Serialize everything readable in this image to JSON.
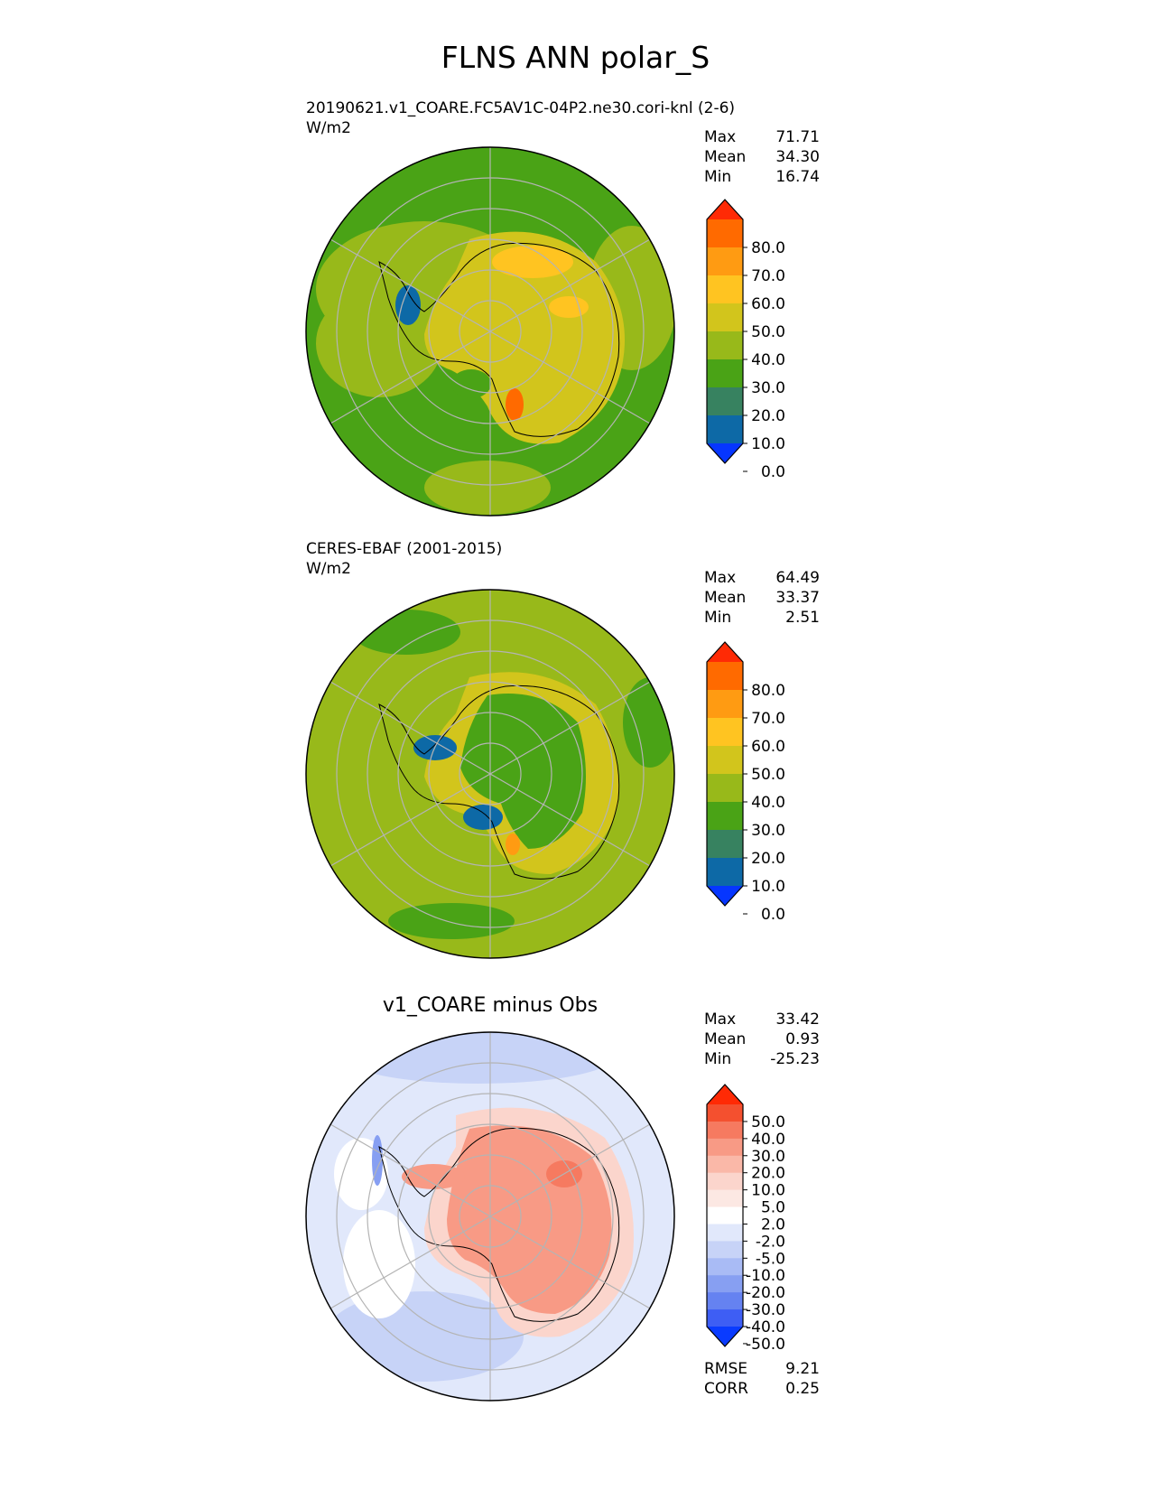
{
  "figure": {
    "title": "FLNS ANN polar_S"
  },
  "panels": [
    {
      "id": "test",
      "title_line1": "20190621.v1_COARE.FC5AV1C-04P2.ne30.cori-knl (2-6)",
      "title_line2": "W/m2",
      "stats": [
        {
          "label": "Max",
          "value": "71.71"
        },
        {
          "label": "Mean",
          "value": "34.30"
        },
        {
          "label": "Min",
          "value": "16.74"
        }
      ]
    },
    {
      "id": "ref",
      "title_line1": "CERES-EBAF (2001-2015)",
      "title_line2": "W/m2",
      "stats": [
        {
          "label": "Max",
          "value": "64.49"
        },
        {
          "label": "Mean",
          "value": "33.37"
        },
        {
          "label": "Min",
          "value": "2.51"
        }
      ]
    },
    {
      "id": "diff",
      "title": "v1_COARE minus Obs",
      "stats": [
        {
          "label": "Max",
          "value": "33.42"
        },
        {
          "label": "Mean",
          "value": "0.93"
        },
        {
          "label": "Min",
          "value": "-25.23"
        }
      ],
      "metrics": [
        {
          "label": "RMSE",
          "value": "9.21"
        },
        {
          "label": "CORR",
          "value": "0.25"
        }
      ]
    }
  ],
  "colorbars": {
    "abs": {
      "ticks": [
        "80.0",
        "70.0",
        "60.0",
        "50.0",
        "40.0",
        "30.0",
        "20.0",
        "10.0",
        "0.0"
      ],
      "colors_top_to_bottom": [
        "#ff2a05",
        "#ff6a00",
        "#ff9b12",
        "#ffc421",
        "#d2c51c",
        "#98b91a",
        "#4aa316",
        "#378260",
        "#0d69a6",
        "#0636ff"
      ]
    },
    "diff": {
      "ticks": [
        "50.0",
        "40.0",
        "30.0",
        "20.0",
        "10.0",
        "5.0",
        "2.0",
        "-2.0",
        "-5.0",
        "-10.0",
        "-20.0",
        "-30.0",
        "-40.0",
        "-50.0"
      ],
      "colors_top_to_bottom": [
        "#ff2a05",
        "#f4502f",
        "#f67a60",
        "#f89a85",
        "#fab8a8",
        "#fbd5cc",
        "#fce8e3",
        "#ffffff",
        "#e1e8fb",
        "#c7d3f7",
        "#a9bbf5",
        "#879ff2",
        "#6582f1",
        "#3e5ef4",
        "#0a3bff"
      ]
    }
  },
  "chart_data": [
    {
      "type": "heatmap",
      "title": "20190621.v1_COARE.FC5AV1C-04P2.ne30.cori-knl (2-6)",
      "units": "W/m2",
      "projection": "south polar stereographic",
      "max": 71.71,
      "mean": 34.3,
      "min": 16.74,
      "colorbar_levels": [
        0,
        10,
        20,
        30,
        40,
        50,
        60,
        70,
        80
      ],
      "grid": true
    },
    {
      "type": "heatmap",
      "title": "CERES-EBAF (2001-2015)",
      "units": "W/m2",
      "projection": "south polar stereographic",
      "max": 64.49,
      "mean": 33.37,
      "min": 2.51,
      "colorbar_levels": [
        0,
        10,
        20,
        30,
        40,
        50,
        60,
        70,
        80
      ],
      "grid": true
    },
    {
      "type": "heatmap",
      "title": "v1_COARE minus Obs",
      "projection": "south polar stereographic",
      "max": 33.42,
      "mean": 0.93,
      "min": -25.23,
      "rmse": 9.21,
      "corr": 0.25,
      "colorbar_levels": [
        -50,
        -40,
        -30,
        -20,
        -10,
        -5,
        -2,
        2,
        5,
        10,
        20,
        30,
        40,
        50
      ],
      "grid": true
    }
  ]
}
